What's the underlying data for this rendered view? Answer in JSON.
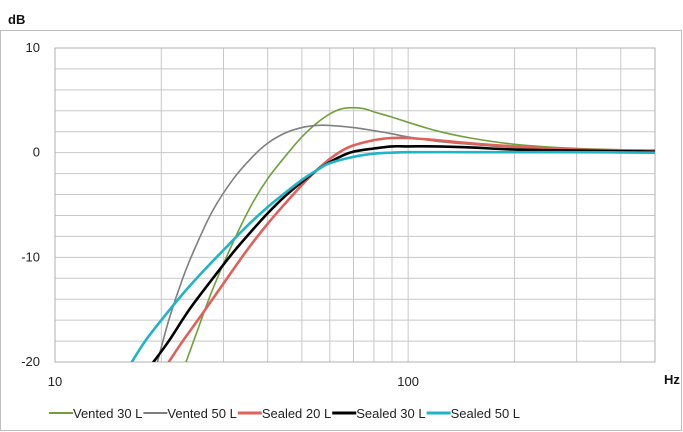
{
  "chart_data": {
    "type": "line",
    "title": "",
    "xlabel": "Hz",
    "ylabel": "dB",
    "x_scale": "log",
    "xlim": [
      10,
      500
    ],
    "ylim": [
      -20,
      10
    ],
    "x_ticks": [
      10,
      100
    ],
    "x_tick_labels": [
      "10",
      "100"
    ],
    "y_ticks": [
      -20,
      -10,
      0,
      10
    ],
    "y_tick_labels": [
      "-20",
      "-10",
      "0",
      "10"
    ],
    "grid": true,
    "legend_position": "bottom",
    "series": [
      {
        "name": "Vented 30 L",
        "color": "#70a03c",
        "width": 1.6,
        "points": [
          [
            23.5,
            -20
          ],
          [
            25,
            -17.5
          ],
          [
            28,
            -13
          ],
          [
            32,
            -8.5
          ],
          [
            36,
            -5
          ],
          [
            40,
            -2.5
          ],
          [
            45,
            -0.3
          ],
          [
            50,
            1.5
          ],
          [
            55,
            2.8
          ],
          [
            60,
            3.7
          ],
          [
            65,
            4.2
          ],
          [
            70,
            4.3
          ],
          [
            75,
            4.2
          ],
          [
            80,
            3.9
          ],
          [
            90,
            3.4
          ],
          [
            100,
            2.9
          ],
          [
            120,
            2.1
          ],
          [
            150,
            1.4
          ],
          [
            200,
            0.8
          ],
          [
            300,
            0.4
          ],
          [
            500,
            0.2
          ]
        ]
      },
      {
        "name": "Vented 50 L",
        "color": "#7f7f7f",
        "width": 1.6,
        "points": [
          [
            19.5,
            -20
          ],
          [
            21,
            -16
          ],
          [
            23,
            -12
          ],
          [
            25,
            -9
          ],
          [
            28,
            -5.5
          ],
          [
            32,
            -2.5
          ],
          [
            36,
            -0.5
          ],
          [
            40,
            0.9
          ],
          [
            45,
            1.9
          ],
          [
            50,
            2.4
          ],
          [
            55,
            2.6
          ],
          [
            60,
            2.6
          ],
          [
            70,
            2.4
          ],
          [
            80,
            2.1
          ],
          [
            90,
            1.8
          ],
          [
            100,
            1.5
          ],
          [
            120,
            1.1
          ],
          [
            150,
            0.8
          ],
          [
            200,
            0.5
          ],
          [
            300,
            0.3
          ],
          [
            500,
            0.2
          ]
        ]
      },
      {
        "name": "Sealed 20 L",
        "color": "#e0605a",
        "width": 2.6,
        "points": [
          [
            21,
            -20
          ],
          [
            23,
            -18
          ],
          [
            26,
            -15.5
          ],
          [
            30,
            -12.5
          ],
          [
            35,
            -9.3
          ],
          [
            40,
            -6.8
          ],
          [
            45,
            -4.8
          ],
          [
            50,
            -3.1
          ],
          [
            55,
            -1.7
          ],
          [
            60,
            -0.6
          ],
          [
            65,
            0.2
          ],
          [
            70,
            0.7
          ],
          [
            80,
            1.2
          ],
          [
            90,
            1.4
          ],
          [
            100,
            1.4
          ],
          [
            120,
            1.2
          ],
          [
            150,
            0.9
          ],
          [
            200,
            0.6
          ],
          [
            300,
            0.3
          ],
          [
            500,
            0.2
          ]
        ]
      },
      {
        "name": "Sealed 30 L",
        "color": "#000000",
        "width": 2.6,
        "points": [
          [
            19,
            -20
          ],
          [
            21,
            -18
          ],
          [
            24,
            -15
          ],
          [
            28,
            -12
          ],
          [
            32,
            -9.5
          ],
          [
            36,
            -7.5
          ],
          [
            40,
            -5.8
          ],
          [
            45,
            -4.1
          ],
          [
            50,
            -2.8
          ],
          [
            55,
            -1.7
          ],
          [
            60,
            -0.9
          ],
          [
            65,
            -0.3
          ],
          [
            70,
            0.1
          ],
          [
            80,
            0.4
          ],
          [
            90,
            0.6
          ],
          [
            100,
            0.6
          ],
          [
            120,
            0.6
          ],
          [
            150,
            0.5
          ],
          [
            200,
            0.3
          ],
          [
            300,
            0.2
          ],
          [
            500,
            0.1
          ]
        ]
      },
      {
        "name": "Sealed 50 L",
        "color": "#1fb4c8",
        "width": 2.6,
        "points": [
          [
            16.5,
            -20
          ],
          [
            18,
            -18
          ],
          [
            20,
            -16
          ],
          [
            23,
            -13.5
          ],
          [
            26,
            -11.5
          ],
          [
            30,
            -9.3
          ],
          [
            35,
            -7
          ],
          [
            40,
            -5.2
          ],
          [
            45,
            -3.8
          ],
          [
            50,
            -2.6
          ],
          [
            55,
            -1.7
          ],
          [
            60,
            -1.0
          ],
          [
            70,
            -0.4
          ],
          [
            80,
            -0.1
          ],
          [
            90,
            0.0
          ],
          [
            100,
            0.05
          ],
          [
            150,
            0.05
          ],
          [
            200,
            0.05
          ],
          [
            300,
            0.05
          ],
          [
            500,
            0.0
          ]
        ]
      }
    ]
  }
}
